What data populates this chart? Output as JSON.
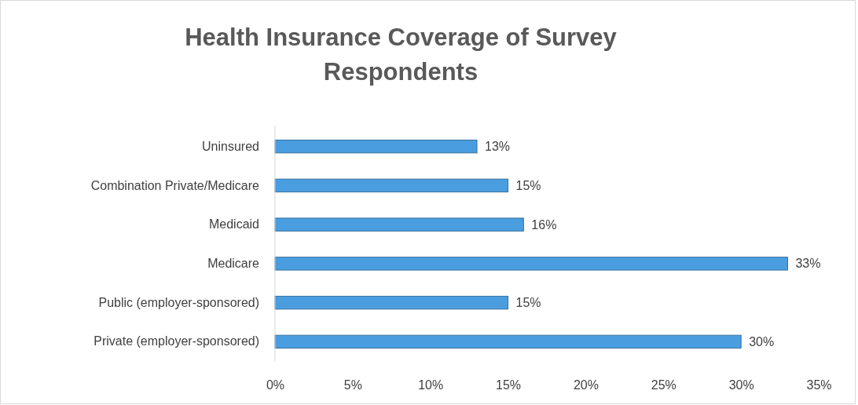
{
  "chart_data": {
    "type": "bar",
    "orientation": "horizontal",
    "title": "Health Insurance Coverage of Survey Respondents",
    "categories": [
      "Uninsured",
      "Combination Private/Medicare",
      "Medicaid",
      "Medicare",
      "Public (employer-sponsored)",
      "Private (employer-sponsored)"
    ],
    "values": [
      13,
      15,
      16,
      33,
      15,
      30
    ],
    "value_labels": [
      "13%",
      "15%",
      "16%",
      "33%",
      "15%",
      "30%"
    ],
    "color": "#4a9ee0",
    "xlim": [
      0,
      35
    ],
    "xticks": [
      {
        "value": 0,
        "label": "0%"
      },
      {
        "value": 5,
        "label": "5%"
      },
      {
        "value": 10,
        "label": "10%"
      },
      {
        "value": 15,
        "label": "15%"
      },
      {
        "value": 20,
        "label": "20%"
      },
      {
        "value": 25,
        "label": "25%"
      },
      {
        "value": 30,
        "label": "30%"
      },
      {
        "value": 35,
        "label": "35%"
      }
    ],
    "grid": false
  }
}
